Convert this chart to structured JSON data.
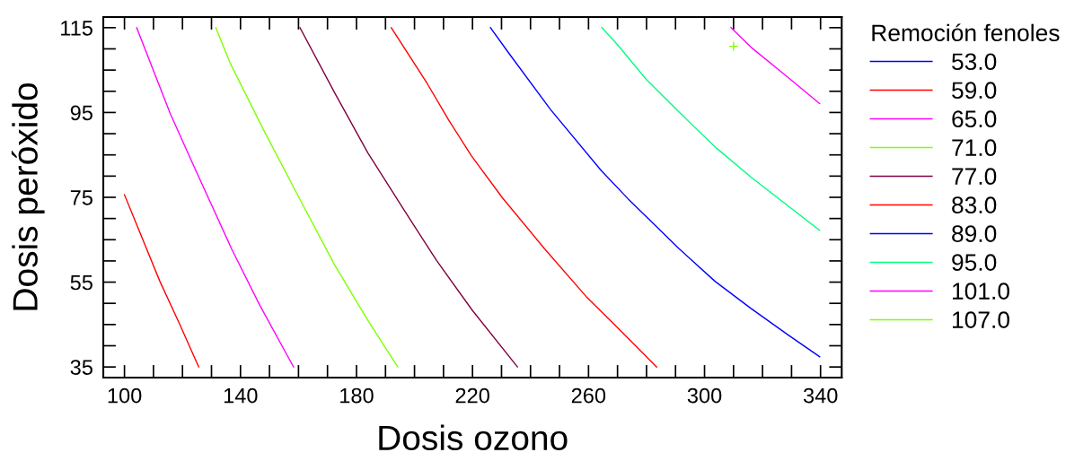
{
  "chart_data": {
    "type": "line",
    "xlabel": "Dosis ozono",
    "ylabel": "Dosis peróxido",
    "legend_title": "Remoción fenoles",
    "legend": "right",
    "grid": false,
    "marker": "none",
    "line_style": "solid",
    "xlim": [
      92.7,
      347.3
    ],
    "ylim": [
      32.5,
      117.5
    ],
    "xticks": [
      100,
      {
        "value": 110,
        "label": null
      },
      {
        "value": 120,
        "label": null
      },
      {
        "value": 130,
        "label": null
      },
      140,
      {
        "value": 150,
        "label": null
      },
      {
        "value": 160,
        "label": null
      },
      {
        "value": 170,
        "label": null
      },
      180,
      {
        "value": 190,
        "label": null
      },
      {
        "value": 200,
        "label": null
      },
      {
        "value": 210,
        "label": null
      },
      220,
      {
        "value": 230,
        "label": null
      },
      {
        "value": 240,
        "label": null
      },
      {
        "value": 250,
        "label": null
      },
      260,
      {
        "value": 270,
        "label": null
      },
      {
        "value": 280,
        "label": null
      },
      {
        "value": 290,
        "label": null
      },
      300,
      {
        "value": 310,
        "label": null
      },
      {
        "value": 320,
        "label": null
      },
      {
        "value": 330,
        "label": null
      },
      340
    ],
    "yticks": [
      35,
      {
        "value": 40,
        "label": null
      },
      {
        "value": 45,
        "label": null
      },
      {
        "value": 50,
        "label": null
      },
      55,
      {
        "value": 60,
        "label": null
      },
      {
        "value": 65,
        "label": null
      },
      {
        "value": 70,
        "label": null
      },
      75,
      {
        "value": 80,
        "label": null
      },
      {
        "value": 85,
        "label": null
      },
      {
        "value": 90,
        "label": null
      },
      95,
      {
        "value": 100,
        "label": null
      },
      {
        "value": 105,
        "label": null
      },
      {
        "value": 110,
        "label": null
      },
      115
    ],
    "series": [
      {
        "name": "53.0",
        "color": "#0000ff"
      },
      {
        "name": "59.0",
        "color": "#ff0000",
        "x": [
          100,
          112.2,
          118.9,
          125.6
        ],
        "values": [
          75.6,
          55.2,
          45.3,
          35.0
        ]
      },
      {
        "name": "65.0",
        "color": "#ff00ff",
        "x": [
          104.2,
          115.8,
          123.5,
          136.9,
          146.7,
          158.3
        ],
        "values": [
          115,
          94.7,
          83.0,
          62.9,
          49.5,
          35.0
        ]
      },
      {
        "name": "71.0",
        "color": "#80ff00",
        "x": [
          131.5,
          136.4,
          147.8,
          160.2,
          172.5,
          183.9,
          194.2
        ],
        "values": [
          115,
          106.7,
          91.1,
          74.9,
          59.0,
          46.0,
          35.0
        ]
      },
      {
        "name": "77.0",
        "color": "#800040",
        "x": [
          160.5,
          172.5,
          183.9,
          196.3,
          207.6,
          220.0,
          235.5
        ],
        "values": [
          115,
          99.6,
          85.5,
          72.1,
          60.1,
          48.3,
          35.0
        ]
      },
      {
        "name": "83.0",
        "color": "#ff0000",
        "x": [
          192.0,
          204.5,
          211.7,
          219.6,
          230.3,
          244.8,
          259.2,
          269.5,
          283.5
        ],
        "values": [
          115,
          101.7,
          93.3,
          84.8,
          74.9,
          62.9,
          51.6,
          44.6,
          35.0
        ]
      },
      {
        "name": "89.0",
        "color": "#0000ff",
        "x": [
          226.2,
          232.4,
          246.9,
          264.4,
          273.7,
          291.2,
          303.6,
          316.0,
          328.9,
          339.7
        ],
        "values": [
          115,
          109.1,
          95.7,
          81.3,
          74.6,
          62.9,
          55.2,
          48.8,
          42.5,
          37.4
        ]
      },
      {
        "name": "95.0",
        "color": "#00ff80",
        "x": [
          264.6,
          270.1,
          279.9,
          291.8,
          304.1,
          316.5,
          339.7
        ],
        "values": [
          115,
          110.9,
          102.8,
          94.7,
          86.6,
          79.5,
          67.2
        ]
      },
      {
        "name": "101.0",
        "color": "#ff00ff",
        "x": [
          309.1,
          316.0,
          328.4,
          339.7
        ],
        "values": [
          115,
          110.4,
          103.5,
          97.1
        ]
      },
      {
        "name": "107.0",
        "color": "#80ff00",
        "type": "scatter",
        "marker": "cross",
        "x": [
          310.0
        ],
        "values": [
          110.6
        ]
      }
    ]
  }
}
